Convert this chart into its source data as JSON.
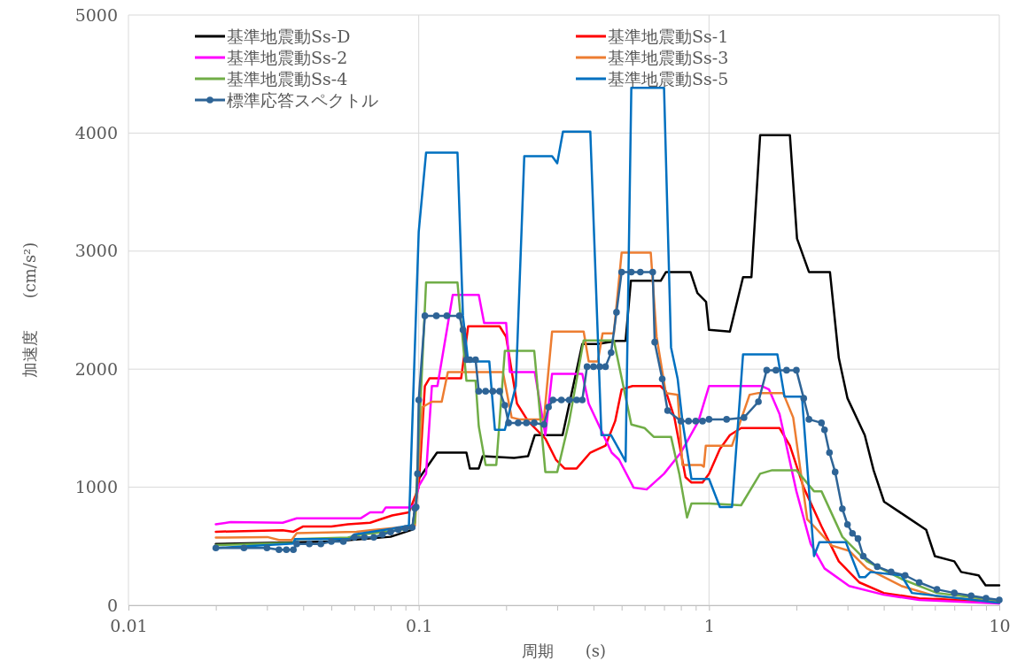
{
  "chart_data": {
    "type": "line",
    "xlabel": "周期　　(s)",
    "ylabel": "加速度　　(cm/s²)",
    "log": "x",
    "grid": true,
    "legend": "top left",
    "line_style": "solid",
    "xlim": [
      0.01,
      10
    ],
    "ylim": [
      0,
      5000
    ],
    "xticks": [
      0.01,
      {
        "value": 0.02,
        "label": null
      },
      {
        "value": 0.03,
        "label": null
      },
      {
        "value": 0.04,
        "label": null
      },
      {
        "value": 0.05,
        "label": null
      },
      {
        "value": 0.06,
        "label": null
      },
      {
        "value": 0.07,
        "label": null
      },
      {
        "value": 0.08,
        "label": null
      },
      {
        "value": 0.09,
        "label": null
      },
      0.1,
      {
        "value": 0.2,
        "label": null
      },
      {
        "value": 0.3,
        "label": null
      },
      {
        "value": 0.4,
        "label": null
      },
      {
        "value": 0.5,
        "label": null
      },
      {
        "value": 0.6,
        "label": null
      },
      {
        "value": 0.7,
        "label": null
      },
      {
        "value": 0.8,
        "label": null
      },
      {
        "value": 0.9,
        "label": null
      },
      1,
      {
        "value": 2,
        "label": null
      },
      {
        "value": 3,
        "label": null
      },
      {
        "value": 4,
        "label": null
      },
      {
        "value": 5,
        "label": null
      },
      {
        "value": 6,
        "label": null
      },
      {
        "value": 7,
        "label": null
      },
      {
        "value": 8,
        "label": null
      },
      {
        "value": 9,
        "label": null
      },
      10
    ],
    "yticks": [
      0,
      1000,
      2000,
      3000,
      4000,
      5000
    ],
    "series": [
      {
        "name": "基準地震動Ss-D",
        "color": "#000000",
        "marker": "none",
        "x": [
          0.02,
          0.05,
          0.08,
          0.095,
          0.1,
          0.1156,
          0.146,
          0.15,
          0.161,
          0.166,
          0.213,
          0.238,
          0.251,
          0.313,
          0.366,
          0.414,
          0.48,
          0.516,
          0.538,
          0.682,
          0.711,
          0.863,
          0.912,
          0.977,
          1.0,
          1.18,
          1.31,
          1.4,
          1.5,
          1.9,
          2.01,
          2.21,
          2.61,
          2.8,
          3.0,
          3.44,
          3.69,
          4.01,
          4.74,
          5.6,
          6.0,
          7.0,
          7.39,
          8.49,
          8.97,
          10
        ],
        "values": [
          520,
          540,
          580,
          640,
          1070,
          1293,
          1293,
          1159,
          1159,
          1263,
          1248,
          1263,
          1441,
          1441,
          2214,
          2214,
          2240,
          2240,
          2749,
          2749,
          2823,
          2823,
          2645,
          2571,
          2333,
          2318,
          2779,
          2779,
          3982,
          3982,
          3106,
          2823,
          2823,
          2095,
          1753,
          1441,
          1144,
          877,
          758,
          639,
          416,
          372,
          282,
          253,
          169,
          169
        ]
      },
      {
        "name": "基準地震動Ss-1",
        "color": "#ff0000",
        "marker": "none",
        "x": [
          0.02,
          0.034,
          0.037,
          0.04,
          0.05,
          0.057,
          0.068,
          0.081,
          0.0925,
          0.1,
          0.105,
          0.109,
          0.14,
          0.148,
          0.19,
          0.2,
          0.218,
          0.238,
          0.273,
          0.297,
          0.318,
          0.35,
          0.39,
          0.44,
          0.475,
          0.5,
          0.545,
          0.68,
          0.71,
          0.76,
          0.83,
          0.87,
          0.95,
          1.0,
          1.09,
          1.18,
          1.29,
          1.75,
          1.9,
          2.12,
          2.44,
          2.8,
          3.3,
          4.0,
          5.3,
          10
        ],
        "values": [
          623,
          636,
          623,
          668,
          668,
          686,
          699,
          761,
          787,
          1000,
          1857,
          1923,
          1923,
          2363,
          2363,
          2274,
          1709,
          1560,
          1412,
          1233,
          1159,
          1159,
          1293,
          1352,
          1560,
          1828,
          1857,
          1857,
          1813,
          1590,
          1085,
          1040,
          1040,
          1114,
          1323,
          1441,
          1501,
          1501,
          1352,
          996,
          669,
          372,
          193,
          104,
          59,
          30
        ]
      },
      {
        "name": "基準地震動Ss-2",
        "color": "#ff00ff",
        "marker": "none",
        "x": [
          0.02,
          0.0225,
          0.034,
          0.038,
          0.063,
          0.068,
          0.075,
          0.077,
          0.093,
          0.097,
          0.1,
          0.106,
          0.111,
          0.116,
          0.131,
          0.161,
          0.168,
          0.2,
          0.206,
          0.251,
          0.273,
          0.288,
          0.366,
          0.385,
          0.462,
          0.49,
          0.55,
          0.61,
          0.7,
          0.8,
          0.92,
          1.0,
          1.52,
          1.61,
          1.75,
          2.0,
          2.24,
          2.5,
          3.04,
          4.0,
          5.3,
          10
        ],
        "values": [
          686,
          704,
          699,
          736,
          736,
          787,
          787,
          829,
          829,
          850,
          1010,
          1114,
          1857,
          1857,
          2630,
          2630,
          2392,
          2392,
          1976,
          1976,
          1441,
          1961,
          1961,
          1709,
          1293,
          1233,
          996,
          981,
          1114,
          1293,
          1560,
          1857,
          1857,
          1828,
          1620,
          966,
          520,
          312,
          163,
          89,
          45,
          15
        ]
      },
      {
        "name": "基準地震動Ss-3",
        "color": "#ed7d31",
        "marker": "none",
        "x": [
          0.02,
          0.0301,
          0.033,
          0.0365,
          0.038,
          0.061,
          0.068,
          0.088,
          0.097,
          0.103,
          0.111,
          0.12,
          0.126,
          0.195,
          0.209,
          0.222,
          0.27,
          0.288,
          0.37,
          0.385,
          0.414,
          0.43,
          0.47,
          0.5,
          0.63,
          0.66,
          0.71,
          0.78,
          0.81,
          0.94,
          0.96,
          0.975,
          1.2,
          1.38,
          1.48,
          1.8,
          1.95,
          2.18,
          2.3,
          2.65,
          3.04,
          3.5,
          4.6,
          6.1,
          10
        ],
        "values": [
          573,
          578,
          553,
          553,
          611,
          623,
          636,
          661,
          674,
          1679,
          1724,
          1724,
          1976,
          1976,
          1590,
          1575,
          1575,
          2318,
          2318,
          2066,
          2066,
          2303,
          2303,
          2987,
          2987,
          2274,
          1798,
          1783,
          1189,
          1189,
          1174,
          1352,
          1352,
          1783,
          1798,
          1798,
          1590,
          728,
          669,
          505,
          461,
          312,
          163,
          74,
          30
        ]
      },
      {
        "name": "基準地震動Ss-4",
        "color": "#70ad47",
        "marker": "none",
        "x": [
          0.02,
          0.037,
          0.0375,
          0.057,
          0.063,
          0.077,
          0.092,
          0.097,
          0.106,
          0.136,
          0.146,
          0.157,
          0.161,
          0.17,
          0.185,
          0.198,
          0.25,
          0.273,
          0.3,
          0.33,
          0.37,
          0.47,
          0.54,
          0.6,
          0.645,
          0.74,
          0.79,
          0.84,
          0.87,
          1.0,
          1.29,
          1.5,
          1.65,
          2.0,
          2.3,
          2.44,
          2.88,
          3.5,
          4.6,
          6.1,
          10
        ],
        "values": [
          510,
          528,
          560,
          573,
          598,
          623,
          648,
          699,
          2734,
          2734,
          1902,
          1902,
          1516,
          1189,
          1189,
          2155,
          2155,
          1129,
          1129,
          1560,
          2244,
          2244,
          1531,
          1501,
          1427,
          1427,
          1114,
          743,
          862,
          862,
          847,
          1114,
          1144,
          1144,
          966,
          966,
          580,
          372,
          223,
          104,
          39
        ]
      },
      {
        "name": "基準地震動Ss-5",
        "color": "#0070c0",
        "marker": "none",
        "x": [
          0.02,
          0.037,
          0.0375,
          0.058,
          0.06,
          0.081,
          0.0925,
          0.1,
          0.106,
          0.136,
          0.142,
          0.148,
          0.175,
          0.183,
          0.198,
          0.216,
          0.231,
          0.288,
          0.3,
          0.314,
          0.39,
          0.426,
          0.46,
          0.516,
          0.54,
          0.7,
          0.74,
          0.78,
          0.81,
          0.87,
          1.0,
          1.09,
          1.2,
          1.31,
          1.72,
          1.82,
          2.09,
          2.3,
          2.4,
          2.96,
          3.3,
          3.45,
          3.6,
          4.6,
          5.0,
          10
        ],
        "values": [
          485,
          523,
          560,
          560,
          600,
          648,
          674,
          3165,
          3834,
          3834,
          2452,
          2066,
          2066,
          1486,
          1486,
          1857,
          3804,
          3804,
          3745,
          4012,
          4012,
          1441,
          1441,
          1219,
          4384,
          4384,
          2184,
          1917,
          1560,
          1070,
          1070,
          832,
          832,
          2125,
          2125,
          1768,
          1768,
          416,
          535,
          535,
          238,
          238,
          282,
          253,
          104,
          21
        ]
      },
      {
        "name": "標準応答スペクトル",
        "color": "#2e6496",
        "marker": "circle",
        "x": [
          0.02,
          0.025,
          0.03,
          0.033,
          0.035,
          0.037,
          0.038,
          0.042,
          0.046,
          0.05,
          0.055,
          0.06,
          0.065,
          0.07,
          0.075,
          0.08,
          0.085,
          0.09,
          0.095,
          0.097,
          0.098,
          0.099,
          0.1,
          0.105,
          0.115,
          0.125,
          0.138,
          0.142,
          0.146,
          0.15,
          0.157,
          0.161,
          0.17,
          0.18,
          0.19,
          0.198,
          0.204,
          0.22,
          0.235,
          0.25,
          0.27,
          0.28,
          0.29,
          0.31,
          0.33,
          0.35,
          0.366,
          0.38,
          0.4,
          0.42,
          0.44,
          0.46,
          0.48,
          0.5,
          0.54,
          0.58,
          0.64,
          0.65,
          0.69,
          0.72,
          0.8,
          0.85,
          0.9,
          0.95,
          1.0,
          1.15,
          1.32,
          1.48,
          1.58,
          1.7,
          1.85,
          2.0,
          2.12,
          2.21,
          2.44,
          2.5,
          2.6,
          2.72,
          2.88,
          3.0,
          3.12,
          3.26,
          3.4,
          3.8,
          4.24,
          4.74,
          5.3,
          6.1,
          7.0,
          8.0,
          9.0,
          10
        ],
        "values": [
          485,
          485,
          485,
          470,
          470,
          470,
          520,
          520,
          520,
          540,
          540,
          575,
          575,
          575,
          600,
          620,
          640,
          650,
          660,
          820,
          832,
          1114,
          1739,
          2452,
          2452,
          2452,
          2452,
          2333,
          2080,
          2080,
          2080,
          1813,
          1813,
          1813,
          1813,
          1694,
          1545,
          1545,
          1545,
          1545,
          1531,
          1679,
          1739,
          1739,
          1739,
          1739,
          1739,
          2021,
          2021,
          2021,
          2021,
          2140,
          2482,
          2823,
          2823,
          2823,
          2823,
          2229,
          1917,
          1649,
          1560,
          1560,
          1560,
          1560,
          1575,
          1575,
          1590,
          1724,
          1991,
          1991,
          1991,
          1991,
          1753,
          1575,
          1545,
          1486,
          1293,
          1129,
          817,
          684,
          609,
          565,
          416,
          327,
          282,
          253,
          193,
          134,
          104,
          80,
          60,
          45
        ]
      }
    ]
  }
}
